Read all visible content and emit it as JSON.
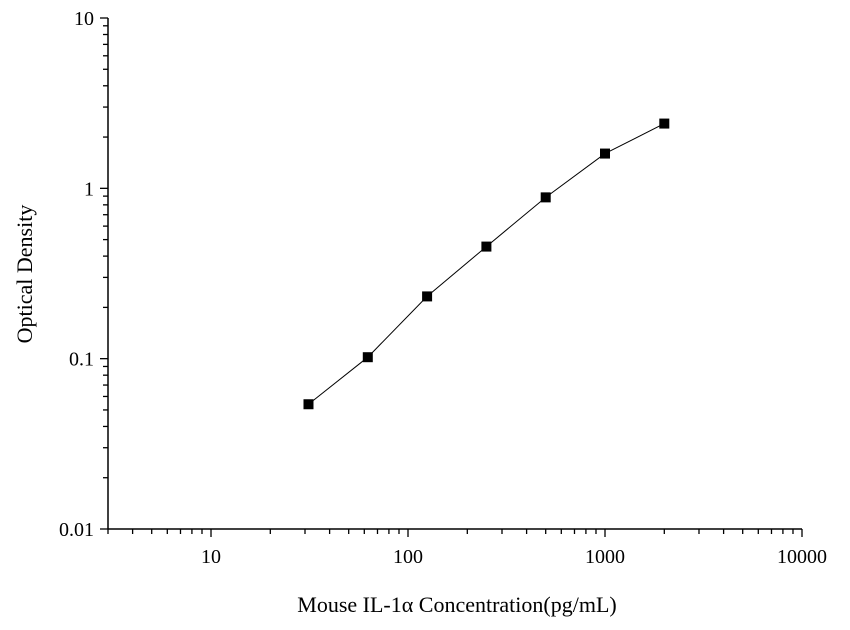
{
  "chart_data": {
    "type": "scatter",
    "title": "",
    "xlabel": "Mouse IL-1α  Concentration(pg/mL)",
    "ylabel": "Optical Density",
    "x_scale": "log",
    "y_scale": "log",
    "xlim": [
      3,
      10000
    ],
    "ylim": [
      0.01,
      10
    ],
    "x_ticks": [
      10,
      100,
      1000,
      10000
    ],
    "x_tick_labels": [
      "10",
      "100",
      "1000",
      "10000"
    ],
    "y_ticks": [
      0.01,
      0.1,
      1,
      10
    ],
    "y_tick_labels": [
      "0.01",
      "0.1",
      "1",
      "10"
    ],
    "grid": false,
    "legend": "none",
    "marker": "square",
    "line_connected": true,
    "colors": {
      "marker": "#000000",
      "line": "#000000"
    },
    "series": [
      {
        "x": [
          31.25,
          62.5,
          125,
          250,
          500,
          1000,
          2000
        ],
        "y": [
          0.054,
          0.102,
          0.232,
          0.455,
          0.885,
          1.6,
          2.4
        ]
      }
    ]
  }
}
